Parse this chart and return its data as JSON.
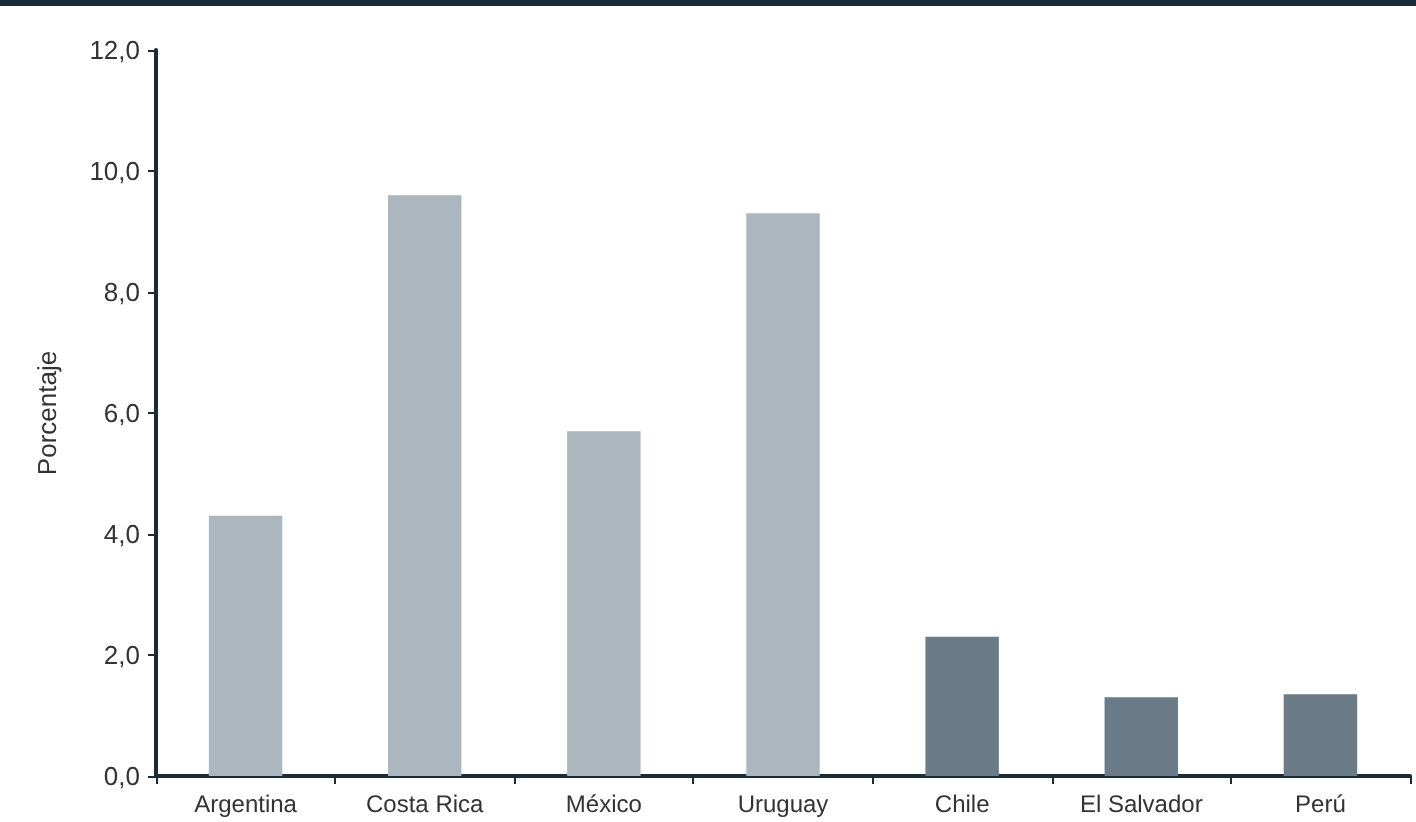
{
  "chart_data": {
    "type": "bar",
    "ylabel": "Porcentaje",
    "categories": [
      "Argentina",
      "Costa Rica",
      "México",
      "Uruguay",
      "Chile",
      "El Salvador",
      "Perú"
    ],
    "values": [
      4.3,
      9.6,
      5.7,
      9.3,
      2.3,
      1.3,
      1.35
    ],
    "colors": [
      "#abb6bf",
      "#abb6bf",
      "#abb6bf",
      "#abb6bf",
      "#6b7b87",
      "#6b7b87",
      "#6b7b87"
    ],
    "ylim": [
      0,
      12
    ],
    "yticks": [
      {
        "value": 0,
        "label": "0,0"
      },
      {
        "value": 2,
        "label": "2,0"
      },
      {
        "value": 4,
        "label": "4,0"
      },
      {
        "value": 6,
        "label": "6,0"
      },
      {
        "value": 8,
        "label": "8,0"
      },
      {
        "value": 10,
        "label": "10,0"
      },
      {
        "value": 12,
        "label": "12,0"
      }
    ],
    "grid": false
  }
}
